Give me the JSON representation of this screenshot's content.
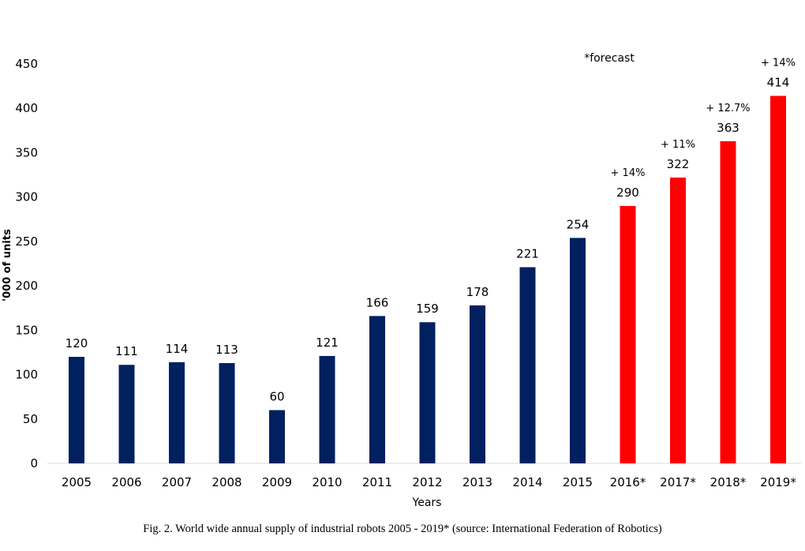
{
  "chart_data": {
    "type": "bar",
    "categories": [
      "2005",
      "2006",
      "2007",
      "2008",
      "2009",
      "2010",
      "2011",
      "2012",
      "2013",
      "2014",
      "2015",
      "2016*",
      "2017*",
      "2018*",
      "2019*"
    ],
    "values": [
      120,
      111,
      114,
      113,
      60,
      121,
      166,
      159,
      178,
      221,
      254,
      290,
      322,
      363,
      414
    ],
    "growth_labels": [
      "",
      "",
      "",
      "",
      "",
      "",
      "",
      "",
      "",
      "",
      "",
      "+ 14%",
      "+ 11%",
      "+ 12.7%",
      "+ 14%"
    ],
    "forecast": [
      false,
      false,
      false,
      false,
      false,
      false,
      false,
      false,
      false,
      false,
      false,
      true,
      true,
      true,
      true
    ],
    "colors": {
      "actual": "#002060",
      "forecast": "#ff0000"
    },
    "xlabel": "Years",
    "ylabel": "'000 of units",
    "ylim": [
      0,
      450
    ],
    "yticks": [
      0,
      50,
      100,
      150,
      200,
      250,
      300,
      350,
      400,
      450
    ],
    "note": "*forecast",
    "grid": false
  },
  "caption": "Fig. 2.   World wide annual supply of industrial robots 2005 - 2019* (source: International Federation of Robotics)"
}
